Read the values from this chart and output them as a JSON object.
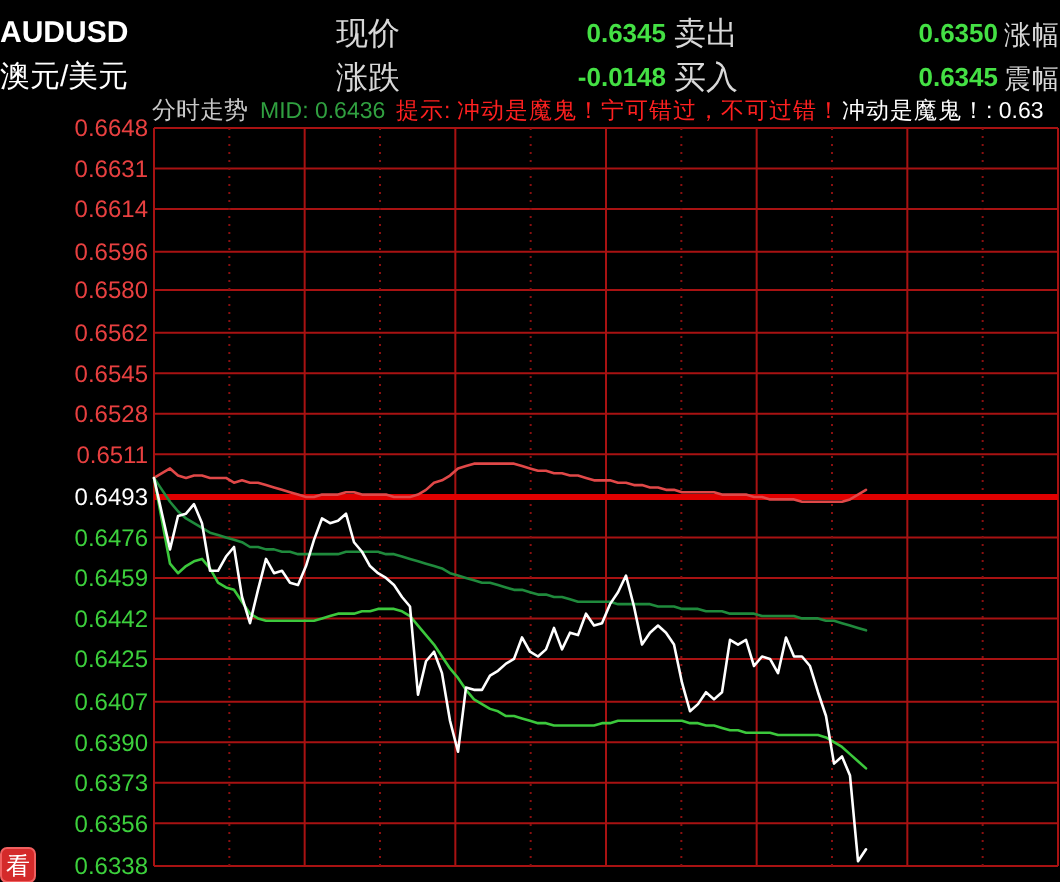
{
  "chart_data": {
    "type": "line",
    "title": "AUDUSD",
    "subtitle": "澳元/美元",
    "annotations": [
      "现价",
      "0.6345",
      "卖出",
      "0.6350",
      "涨幅",
      "涨跌",
      "-0.0148",
      "买入",
      "0.6345",
      "震幅",
      "分时走势",
      "MID: 0.6436",
      "提示: 冲动是魔鬼！宁可错过，不可过错！",
      "冲动是魔鬼！: 0.63",
      "看"
    ],
    "categories": [
      null,
      null,
      null,
      null,
      null,
      null,
      null,
      null,
      null,
      null,
      null,
      null,
      null,
      null,
      null,
      null,
      null,
      null,
      null,
      null,
      null,
      null,
      null,
      null,
      null,
      null,
      null,
      null,
      null,
      null,
      null,
      null,
      null,
      null,
      null,
      null,
      null,
      null,
      null,
      null,
      null,
      null,
      null,
      null,
      null,
      null,
      null,
      null,
      null,
      null,
      null,
      null,
      null,
      null,
      null,
      null,
      null,
      null,
      null,
      null,
      null,
      null,
      null,
      null,
      null,
      null,
      null,
      null,
      null,
      null,
      null,
      null,
      null,
      null,
      null,
      null,
      null,
      null,
      null,
      null,
      null,
      null,
      null,
      null,
      null,
      null,
      null,
      null,
      null,
      null,
      null,
      null,
      null,
      null,
      null,
      null,
      null,
      null,
      null,
      null,
      null,
      null,
      null,
      null,
      null,
      null,
      null,
      null,
      null,
      null,
      null,
      null,
      null,
      null
    ],
    "ylim": [
      0.6338,
      0.6648
    ],
    "yticks": [
      0.6648,
      0.6631,
      0.6614,
      0.6596,
      {
        "value": 0.658,
        "label": "0.6580"
      },
      0.6562,
      0.6545,
      0.6528,
      0.6511,
      0.6493,
      0.6476,
      0.6459,
      0.6442,
      0.6425,
      0.6407,
      {
        "value": 0.639,
        "label": "0.6390"
      },
      0.6373,
      0.6356,
      0.6338
    ],
    "grid": true,
    "ref_lines": [
      {
        "axis": "y",
        "value": 0.6493,
        "color": "#e00000"
      }
    ],
    "series": [
      {
        "color": "#e04848",
        "values": [
          0.6501,
          0.6503,
          0.6505,
          0.6502,
          0.6501,
          0.6502,
          0.6502,
          0.6501,
          0.6501,
          0.6501,
          0.6499,
          0.65,
          0.6499,
          0.6499,
          0.6498,
          0.6497,
          0.6496,
          0.6495,
          0.6494,
          0.6493,
          0.6493,
          0.6494,
          0.6494,
          0.6494,
          0.6495,
          0.6495,
          0.6494,
          0.6494,
          0.6494,
          0.6494,
          0.6493,
          0.6493,
          0.6493,
          0.6494,
          0.6496,
          0.6499,
          0.65,
          0.6502,
          0.6505,
          0.6506,
          0.6507,
          0.6507,
          0.6507,
          0.6507,
          0.6507,
          0.6507,
          0.6506,
          0.6505,
          0.6504,
          0.6504,
          0.6503,
          0.6503,
          0.6502,
          0.6502,
          0.6501,
          0.65,
          0.65,
          0.65,
          0.6499,
          0.6499,
          0.6498,
          0.6498,
          0.6497,
          0.6497,
          0.6496,
          0.6496,
          0.6495,
          0.6495,
          0.6495,
          0.6495,
          0.6495,
          0.6494,
          0.6494,
          0.6494,
          0.6494,
          0.6493,
          0.6493,
          0.6492,
          0.6492,
          0.6492,
          0.6492,
          0.6491,
          0.6491,
          0.6491,
          0.6491,
          0.6491,
          0.6491,
          0.6492,
          0.6494,
          0.6496,
          null,
          null,
          null,
          null,
          null,
          null,
          null,
          null,
          null,
          null,
          null,
          null,
          null,
          null,
          null,
          null,
          null,
          null,
          null,
          null,
          null,
          null,
          null,
          null
        ]
      },
      {
        "color": "#1f8a3c",
        "values": [
          0.6501,
          0.6496,
          0.6491,
          0.6487,
          0.6484,
          0.6482,
          0.648,
          0.6478,
          0.6477,
          0.6476,
          0.6475,
          0.6474,
          0.6472,
          0.6472,
          0.6471,
          0.6471,
          0.647,
          0.647,
          0.6469,
          0.6469,
          0.6469,
          0.6469,
          0.6469,
          0.6469,
          0.647,
          0.647,
          0.647,
          0.647,
          0.647,
          0.6469,
          0.6469,
          0.6468,
          0.6467,
          0.6466,
          0.6465,
          0.6464,
          0.6463,
          0.6461,
          0.646,
          0.6459,
          0.6458,
          0.6457,
          0.6457,
          0.6456,
          0.6455,
          0.6454,
          0.6454,
          0.6453,
          0.6452,
          0.6452,
          0.6451,
          0.6451,
          0.645,
          0.6449,
          0.6449,
          0.6449,
          0.6449,
          0.6449,
          0.6448,
          0.6448,
          0.6448,
          0.6448,
          0.6448,
          0.6447,
          0.6447,
          0.6447,
          0.6446,
          0.6446,
          0.6446,
          0.6445,
          0.6445,
          0.6445,
          0.6444,
          0.6444,
          0.6444,
          0.6444,
          0.6443,
          0.6443,
          0.6443,
          0.6443,
          0.6443,
          0.6442,
          0.6442,
          0.6442,
          0.6441,
          0.6441,
          0.644,
          0.6439,
          0.6438,
          0.6437,
          null,
          null,
          null,
          null,
          null,
          null,
          null,
          null,
          null,
          null,
          null,
          null,
          null,
          null,
          null,
          null,
          null,
          null,
          null,
          null,
          null,
          null,
          null,
          null
        ]
      },
      {
        "color": "#3cc83c",
        "values": [
          0.6501,
          0.6483,
          0.6465,
          0.6461,
          0.6464,
          0.6466,
          0.6467,
          0.6463,
          0.6457,
          0.6455,
          0.6454,
          0.6449,
          0.6444,
          0.6442,
          0.6441,
          0.6441,
          0.6441,
          0.6441,
          0.6441,
          0.6441,
          0.6441,
          0.6442,
          0.6443,
          0.6444,
          0.6444,
          0.6444,
          0.6445,
          0.6445,
          0.6446,
          0.6446,
          0.6446,
          0.6445,
          0.6443,
          0.6439,
          0.6435,
          0.6431,
          0.6426,
          0.6421,
          0.6417,
          0.6412,
          0.6408,
          0.6406,
          0.6404,
          0.6403,
          0.6401,
          0.6401,
          0.64,
          0.6399,
          0.6398,
          0.6398,
          0.6397,
          0.6397,
          0.6397,
          0.6397,
          0.6397,
          0.6397,
          0.6398,
          0.6398,
          0.6399,
          0.6399,
          0.6399,
          0.6399,
          0.6399,
          0.6399,
          0.6399,
          0.6399,
          0.6399,
          0.6398,
          0.6398,
          0.6397,
          0.6397,
          0.6396,
          0.6395,
          0.6395,
          0.6394,
          0.6394,
          0.6394,
          0.6394,
          0.6393,
          0.6393,
          0.6393,
          0.6393,
          0.6393,
          0.6393,
          0.6392,
          0.639,
          0.6388,
          0.6385,
          0.6382,
          0.6379,
          null,
          null,
          null,
          null,
          null,
          null,
          null,
          null,
          null,
          null,
          null,
          null,
          null,
          null,
          null,
          null,
          null,
          null,
          null,
          null,
          null,
          null,
          null,
          null
        ]
      },
      {
        "color": "#ffffff",
        "values": [
          0.6501,
          0.6486,
          0.6471,
          0.6485,
          0.6486,
          0.649,
          0.6482,
          0.6462,
          0.6462,
          0.6468,
          0.6472,
          0.6451,
          0.644,
          0.6454,
          0.6467,
          0.6461,
          0.6462,
          0.6457,
          0.6456,
          0.6464,
          0.6475,
          0.6484,
          0.6482,
          0.6483,
          0.6486,
          0.6474,
          0.647,
          0.6464,
          0.6461,
          0.6459,
          0.6456,
          0.6451,
          0.6447,
          0.641,
          0.6424,
          0.6428,
          0.6419,
          0.6399,
          0.6386,
          0.6413,
          0.6412,
          0.6412,
          0.6418,
          0.642,
          0.6423,
          0.6425,
          0.6434,
          0.6428,
          0.6426,
          0.6429,
          0.6438,
          0.6429,
          0.6436,
          0.6435,
          0.6444,
          0.6439,
          0.644,
          0.6448,
          0.6453,
          0.646,
          0.6447,
          0.6431,
          0.6436,
          0.6439,
          0.6436,
          0.6431,
          0.6415,
          0.6403,
          0.6406,
          0.6411,
          0.6408,
          0.6411,
          0.6433,
          0.6431,
          0.6433,
          0.6422,
          0.6426,
          0.6425,
          0.6419,
          0.6434,
          0.6426,
          0.6426,
          0.6422,
          0.6411,
          0.6401,
          0.6381,
          0.6384,
          0.6376,
          0.634,
          0.6345,
          null,
          null,
          null,
          null,
          null,
          null,
          null,
          null,
          null,
          null,
          null,
          null,
          null,
          null,
          null,
          null,
          null,
          null,
          null,
          null,
          null,
          null,
          null,
          null
        ]
      }
    ]
  }
}
